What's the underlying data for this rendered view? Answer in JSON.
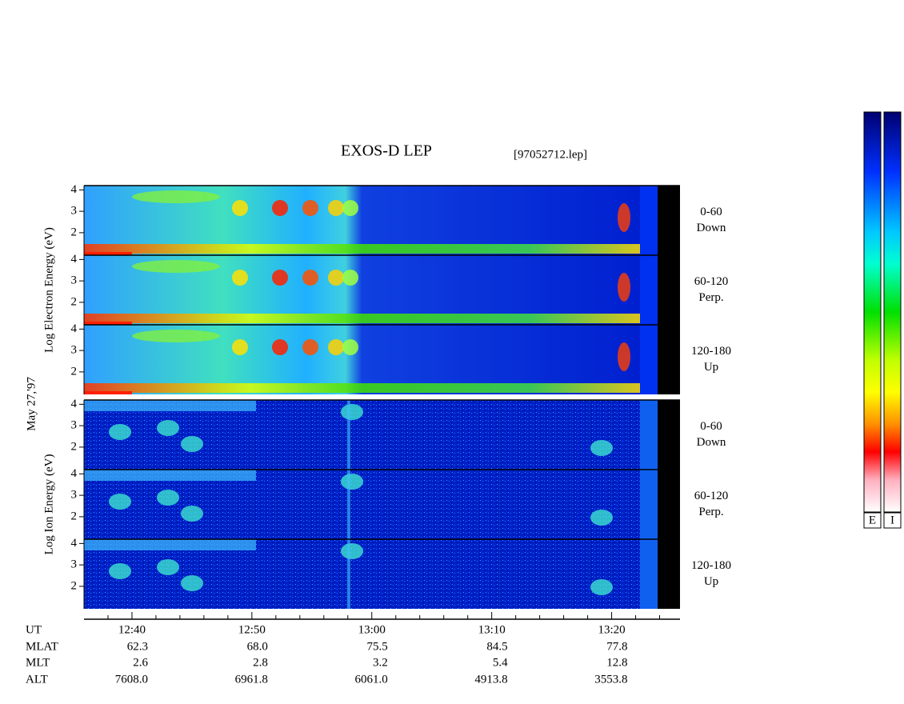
{
  "chart_data": {
    "type": "spectrogram",
    "title": "EXOS-D LEP",
    "subtitle": "[97052712.lep]",
    "date_label": "May 27,'97",
    "groups": [
      {
        "ylabel": "Log Electron Energy (eV)",
        "species": "electron",
        "panels": [
          {
            "label": "0-60",
            "sublabel": "Down"
          },
          {
            "label": "60-120",
            "sublabel": "Perp."
          },
          {
            "label": "120-180",
            "sublabel": "Up"
          }
        ]
      },
      {
        "ylabel": "Log Ion Energy (eV)",
        "species": "ion",
        "panels": [
          {
            "label": "0-60",
            "sublabel": "Down"
          },
          {
            "label": "60-120",
            "sublabel": "Perp."
          },
          {
            "label": "120-180",
            "sublabel": "Up"
          }
        ]
      }
    ],
    "ylim": [
      0.95,
      4.2
    ],
    "yticks": [
      2,
      3,
      4
    ],
    "xlim": [
      756,
      805.7
    ],
    "xticks": [
      {
        "value": 760,
        "label": "12:40"
      },
      {
        "value": 770,
        "label": "12:50"
      },
      {
        "value": 780,
        "label": "13:00"
      },
      {
        "value": 790,
        "label": "13:10"
      },
      {
        "value": 800,
        "label": "13:20"
      }
    ],
    "xminor_ticks": [
      758,
      762,
      764,
      766,
      768,
      772,
      774,
      776,
      778,
      782,
      784,
      786,
      788,
      792,
      794,
      796,
      798,
      802,
      804
    ],
    "orbit_rows": [
      {
        "name": "UT",
        "values": []
      },
      {
        "name": "MLAT",
        "values": [
          "62.3",
          "68.0",
          "75.5",
          "84.5",
          "77.8"
        ]
      },
      {
        "name": "MLT",
        "values": [
          "2.6",
          "2.8",
          "3.2",
          "5.4",
          "12.8"
        ]
      },
      {
        "name": "ALT",
        "values": [
          "7608.0",
          "6961.8",
          "6061.0",
          "4913.8",
          "3553.8"
        ]
      }
    ],
    "colorbars": [
      "E",
      "I"
    ]
  }
}
